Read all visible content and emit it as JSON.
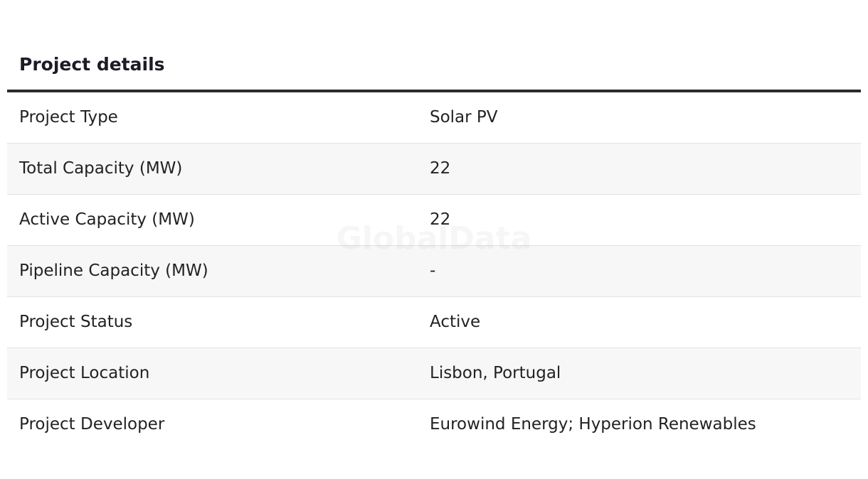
{
  "header": {
    "title": "Project details"
  },
  "watermark": "GlobalData",
  "table": {
    "rows": [
      [
        "Project Type",
        "Solar PV"
      ],
      [
        "Total Capacity (MW)",
        "22"
      ],
      [
        "Active Capacity (MW)",
        "22"
      ],
      [
        "Pipeline Capacity (MW)",
        "-"
      ],
      [
        "Project Status",
        "Active"
      ],
      [
        "Project Location",
        "Lisbon, Portugal"
      ],
      [
        "Project Developer",
        "Eurowind Energy; Hyperion Renewables"
      ]
    ]
  }
}
